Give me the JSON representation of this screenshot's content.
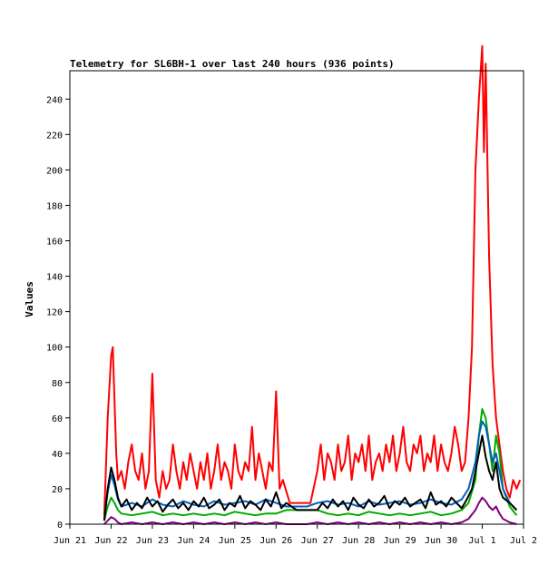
{
  "chart_data": {
    "type": "line",
    "title": "Telemetry for SL6BH-1 over last 240 hours (936 points)",
    "xlabel": "",
    "ylabel": "Values",
    "ylim": [
      0,
      256
    ],
    "xlim": [
      0,
      264
    ],
    "y_ticks": [
      0,
      20,
      40,
      60,
      80,
      100,
      120,
      140,
      160,
      180,
      200,
      220,
      240
    ],
    "x_ticks": [
      {
        "label": "Jun 21",
        "hour": 0
      },
      {
        "label": "Jun 22",
        "hour": 24
      },
      {
        "label": "Jun 23",
        "hour": 48
      },
      {
        "label": "Jun 24",
        "hour": 72
      },
      {
        "label": "Jun 25",
        "hour": 96
      },
      {
        "label": "Jun 26",
        "hour": 120
      },
      {
        "label": "Jun 27",
        "hour": 144
      },
      {
        "label": "Jun 28",
        "hour": 168
      },
      {
        "label": "Jun 29",
        "hour": 192
      },
      {
        "label": "Jun 30",
        "hour": 216
      },
      {
        "label": "Jul 1",
        "hour": 240
      },
      {
        "label": "Jul 2",
        "hour": 264
      }
    ],
    "grid": false,
    "legend": "none",
    "series": [
      {
        "color": "#ff0000",
        "x": [
          20,
          22,
          24,
          25,
          26,
          27,
          28,
          30,
          32,
          34,
          36,
          38,
          40,
          42,
          44,
          46,
          48,
          50,
          52,
          54,
          56,
          58,
          60,
          62,
          64,
          66,
          68,
          70,
          72,
          74,
          76,
          78,
          80,
          82,
          84,
          86,
          88,
          90,
          92,
          94,
          96,
          98,
          100,
          102,
          104,
          106,
          108,
          110,
          112,
          114,
          116,
          118,
          120,
          122,
          124,
          128,
          132,
          136,
          140,
          144,
          146,
          148,
          150,
          152,
          154,
          156,
          158,
          160,
          162,
          164,
          166,
          168,
          170,
          172,
          174,
          176,
          178,
          180,
          182,
          184,
          186,
          188,
          190,
          192,
          194,
          196,
          198,
          200,
          202,
          204,
          206,
          208,
          210,
          212,
          214,
          216,
          218,
          220,
          222,
          224,
          226,
          228,
          230,
          232,
          234,
          236,
          238,
          240,
          241,
          242,
          244,
          246,
          248,
          250,
          252,
          254,
          256,
          258,
          260,
          262
        ],
        "y": [
          5,
          60,
          95,
          100,
          70,
          40,
          25,
          30,
          20,
          35,
          45,
          30,
          25,
          40,
          20,
          30,
          85,
          25,
          15,
          30,
          20,
          25,
          45,
          30,
          20,
          35,
          25,
          40,
          30,
          20,
          35,
          25,
          40,
          20,
          30,
          45,
          25,
          35,
          30,
          20,
          45,
          30,
          25,
          35,
          30,
          55,
          25,
          40,
          30,
          20,
          35,
          30,
          75,
          20,
          25,
          12,
          12,
          12,
          12,
          30,
          45,
          25,
          40,
          35,
          25,
          45,
          30,
          35,
          50,
          25,
          40,
          35,
          45,
          30,
          50,
          25,
          35,
          40,
          30,
          45,
          35,
          50,
          30,
          40,
          55,
          35,
          30,
          45,
          40,
          50,
          30,
          40,
          35,
          50,
          30,
          45,
          35,
          30,
          40,
          55,
          45,
          30,
          35,
          60,
          100,
          200,
          240,
          270,
          210,
          260,
          150,
          90,
          60,
          45,
          30,
          20,
          15,
          25,
          20,
          25
        ]
      },
      {
        "color": "#00aa00",
        "x": [
          20,
          22,
          24,
          26,
          28,
          30,
          36,
          42,
          48,
          54,
          60,
          66,
          72,
          78,
          84,
          90,
          96,
          102,
          108,
          114,
          120,
          126,
          132,
          138,
          144,
          150,
          156,
          162,
          168,
          174,
          180,
          186,
          192,
          198,
          204,
          210,
          216,
          222,
          228,
          232,
          236,
          238,
          240,
          242,
          244,
          246,
          248,
          250,
          252,
          256,
          260
        ],
        "y": [
          2,
          10,
          15,
          12,
          8,
          6,
          5,
          6,
          7,
          5,
          6,
          5,
          6,
          5,
          6,
          5,
          7,
          6,
          5,
          6,
          6,
          8,
          8,
          8,
          8,
          6,
          5,
          6,
          5,
          7,
          6,
          5,
          6,
          5,
          6,
          7,
          5,
          6,
          8,
          12,
          25,
          50,
          65,
          60,
          45,
          30,
          50,
          40,
          20,
          10,
          5
        ]
      },
      {
        "color": "#0060c0",
        "x": [
          20,
          22,
          24,
          26,
          28,
          30,
          36,
          42,
          48,
          54,
          60,
          66,
          72,
          78,
          84,
          90,
          96,
          102,
          108,
          114,
          120,
          126,
          132,
          138,
          144,
          150,
          156,
          162,
          168,
          174,
          180,
          186,
          192,
          198,
          204,
          210,
          216,
          222,
          228,
          232,
          236,
          238,
          240,
          242,
          244,
          246,
          248,
          250,
          252,
          256,
          260
        ],
        "y": [
          3,
          18,
          28,
          22,
          14,
          10,
          12,
          10,
          14,
          11,
          10,
          13,
          11,
          10,
          13,
          11,
          12,
          13,
          11,
          14,
          12,
          10,
          10,
          10,
          12,
          13,
          11,
          12,
          10,
          13,
          11,
          12,
          13,
          11,
          12,
          14,
          12,
          11,
          14,
          20,
          35,
          50,
          58,
          55,
          45,
          35,
          40,
          30,
          20,
          12,
          8
        ]
      },
      {
        "color": "#000000",
        "x": [
          20,
          22,
          24,
          26,
          28,
          30,
          33,
          36,
          39,
          42,
          45,
          48,
          51,
          54,
          57,
          60,
          63,
          66,
          69,
          72,
          75,
          78,
          81,
          84,
          87,
          90,
          93,
          96,
          99,
          102,
          105,
          108,
          111,
          114,
          117,
          120,
          123,
          126,
          132,
          138,
          144,
          147,
          150,
          153,
          156,
          159,
          162,
          165,
          168,
          171,
          174,
          177,
          180,
          183,
          186,
          189,
          192,
          195,
          198,
          201,
          204,
          207,
          210,
          213,
          216,
          219,
          222,
          225,
          228,
          231,
          234,
          236,
          238,
          240,
          242,
          244,
          246,
          248,
          250,
          252,
          256,
          260
        ],
        "y": [
          2,
          20,
          32,
          25,
          15,
          10,
          14,
          8,
          12,
          9,
          15,
          10,
          13,
          7,
          11,
          14,
          9,
          12,
          8,
          13,
          10,
          15,
          9,
          11,
          14,
          8,
          12,
          10,
          16,
          9,
          13,
          11,
          8,
          14,
          10,
          18,
          9,
          12,
          8,
          8,
          8,
          12,
          9,
          14,
          10,
          13,
          8,
          15,
          11,
          9,
          14,
          10,
          12,
          16,
          9,
          13,
          11,
          15,
          10,
          12,
          14,
          9,
          18,
          11,
          13,
          10,
          15,
          12,
          9,
          14,
          20,
          30,
          40,
          50,
          38,
          30,
          25,
          35,
          20,
          15,
          12,
          8
        ]
      },
      {
        "color": "#800080",
        "x": [
          20,
          22,
          24,
          26,
          28,
          30,
          36,
          42,
          48,
          54,
          60,
          66,
          72,
          78,
          84,
          90,
          96,
          102,
          108,
          114,
          120,
          126,
          132,
          138,
          144,
          150,
          156,
          162,
          168,
          174,
          180,
          186,
          192,
          198,
          204,
          210,
          216,
          222,
          228,
          232,
          236,
          238,
          240,
          242,
          244,
          246,
          248,
          250,
          252,
          256,
          260
        ],
        "y": [
          0,
          2,
          4,
          3,
          1,
          0,
          1,
          0,
          1,
          0,
          1,
          0,
          1,
          0,
          1,
          0,
          1,
          0,
          1,
          0,
          1,
          0,
          0,
          0,
          1,
          0,
          1,
          0,
          1,
          0,
          1,
          0,
          1,
          0,
          1,
          0,
          1,
          0,
          1,
          3,
          8,
          12,
          15,
          13,
          10,
          8,
          10,
          6,
          3,
          1,
          0
        ]
      }
    ]
  }
}
